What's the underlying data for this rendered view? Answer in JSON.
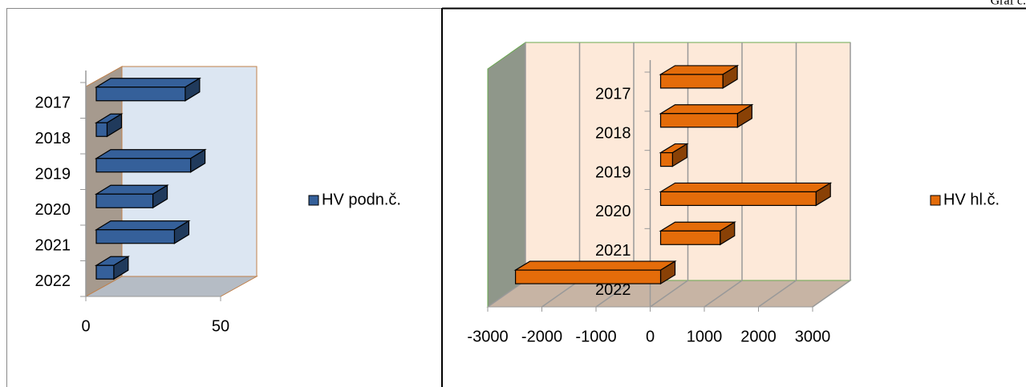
{
  "header": "Graf č.",
  "chart_data": [
    {
      "type": "bar3d",
      "categories": [
        "2017",
        "2018",
        "2019",
        "2020",
        "2021",
        "2022"
      ],
      "series": [
        {
          "name": "HV podn.č.",
          "color": "#35609a",
          "values": [
            33,
            4,
            35,
            21,
            29,
            6.5
          ]
        }
      ],
      "xlim": [
        0,
        50
      ],
      "xticks": [
        0,
        50
      ],
      "grid": false,
      "legend": "right"
    },
    {
      "type": "bar3d",
      "categories": [
        "2017",
        "2018",
        "2019",
        "2020",
        "2021",
        "2022"
      ],
      "series": [
        {
          "name": "HV hl.č.",
          "color": "#e46c0a",
          "values": [
            1150,
            1420,
            220,
            2870,
            1100,
            -2680
          ]
        }
      ],
      "xlim": [
        -3000,
        3000
      ],
      "xticks": [
        -3000,
        -2000,
        -1000,
        0,
        1000,
        2000,
        3000
      ],
      "grid": true,
      "legend": "right"
    }
  ]
}
